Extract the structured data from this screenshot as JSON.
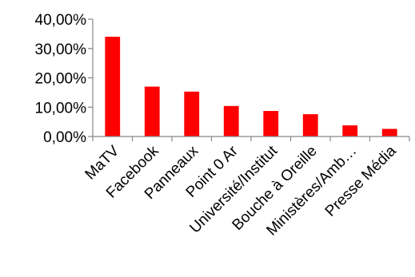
{
  "chart_data": {
    "type": "bar",
    "title": "",
    "xlabel": "",
    "ylabel": "",
    "categories": [
      "MaTV",
      "Facebook",
      "Panneaux",
      "Point 0 Ar",
      "Université/Institut",
      "Bouche à Oreille",
      "Ministères/Amb…",
      "Presse Média"
    ],
    "values": [
      34.0,
      17.0,
      15.3,
      10.4,
      8.7,
      7.6,
      3.8,
      2.6
    ],
    "ylim": [
      0,
      40
    ],
    "yticks": [
      0,
      10,
      20,
      30,
      40
    ],
    "ytick_labels": [
      "0,00%",
      "10,00%",
      "20,00%",
      "30,00%",
      "40,00%"
    ],
    "grid": false,
    "legend": "none",
    "bar_color": "#FF0000"
  }
}
